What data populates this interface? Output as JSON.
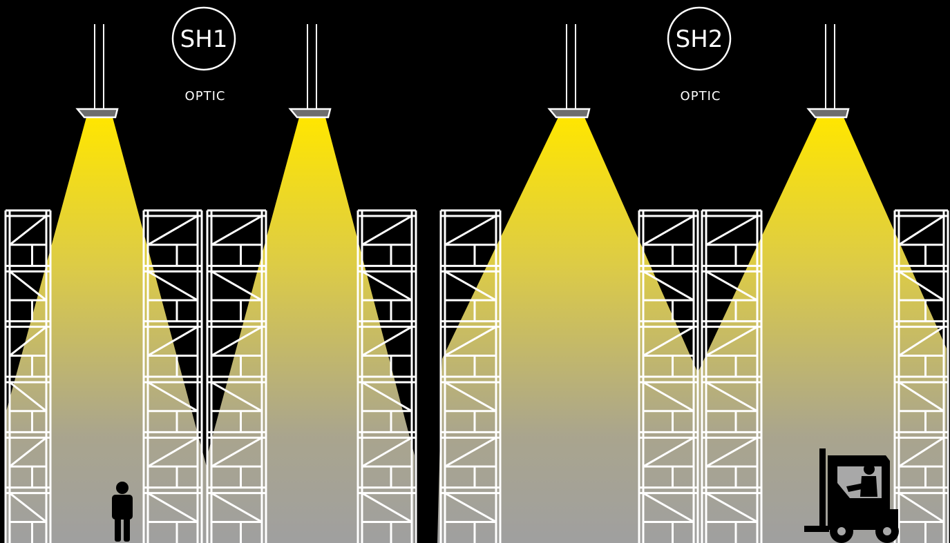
{
  "optics": [
    {
      "id": "SH1",
      "caption": "OPTIC"
    },
    {
      "id": "SH2",
      "caption": "OPTIC"
    }
  ],
  "colors": {
    "beam_top": "#ffe600",
    "beam_bottom": "#aaaaaa",
    "rack": "#ffffff",
    "background": "#000000"
  },
  "icons": {
    "person": "person-icon",
    "forklift": "forklift-icon"
  }
}
